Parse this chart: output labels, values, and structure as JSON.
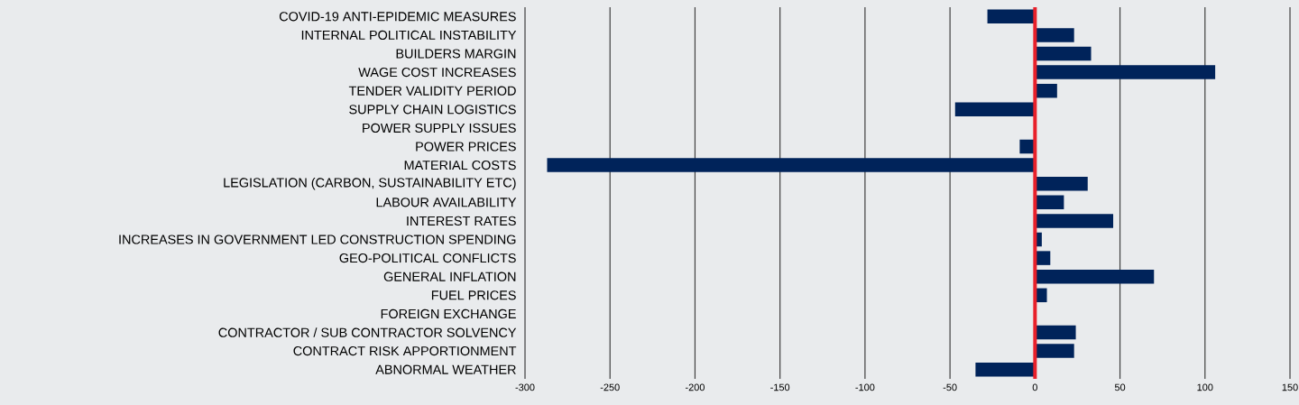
{
  "chart_data": {
    "type": "bar",
    "orientation": "horizontal",
    "categories": [
      "COVID-19 ANTI-EPIDEMIC MEASURES",
      "INTERNAL POLITICAL INSTABILITY",
      "BUILDERS MARGIN",
      "WAGE COST INCREASES",
      "TENDER VALIDITY PERIOD",
      "SUPPLY CHAIN LOGISTICS",
      "POWER SUPPLY ISSUES",
      "POWER PRICES",
      "MATERIAL COSTS",
      "LEGISLATION (CARBON, SUSTAINABILITY ETC)",
      "LABOUR AVAILABILITY",
      "INTEREST RATES",
      "INCREASES IN GOVERNMENT LED CONSTRUCTION SPENDING",
      "GEO-POLITICAL CONFLICTS",
      "GENERAL INFLATION",
      "FUEL PRICES",
      "FOREIGN EXCHANGE",
      "CONTRACTOR / SUB CONTRACTOR SOLVENCY",
      "CONTRACT RISK APPORTIONMENT",
      "ABNORMAL WEATHER"
    ],
    "values": [
      -28,
      23,
      33,
      106,
      13,
      -47,
      0,
      -9,
      -287,
      31,
      17,
      46,
      4,
      9,
      70,
      7,
      0,
      24,
      23,
      -35
    ],
    "color": "#00235a",
    "xlim": [
      -300,
      150
    ],
    "xticks": [
      -300,
      -250,
      -200,
      -150,
      -100,
      -50,
      0,
      50,
      100,
      150
    ],
    "grid": "x",
    "ref_lines": [
      {
        "axis": "x",
        "value": 0,
        "color": "#e8202a"
      }
    ]
  }
}
